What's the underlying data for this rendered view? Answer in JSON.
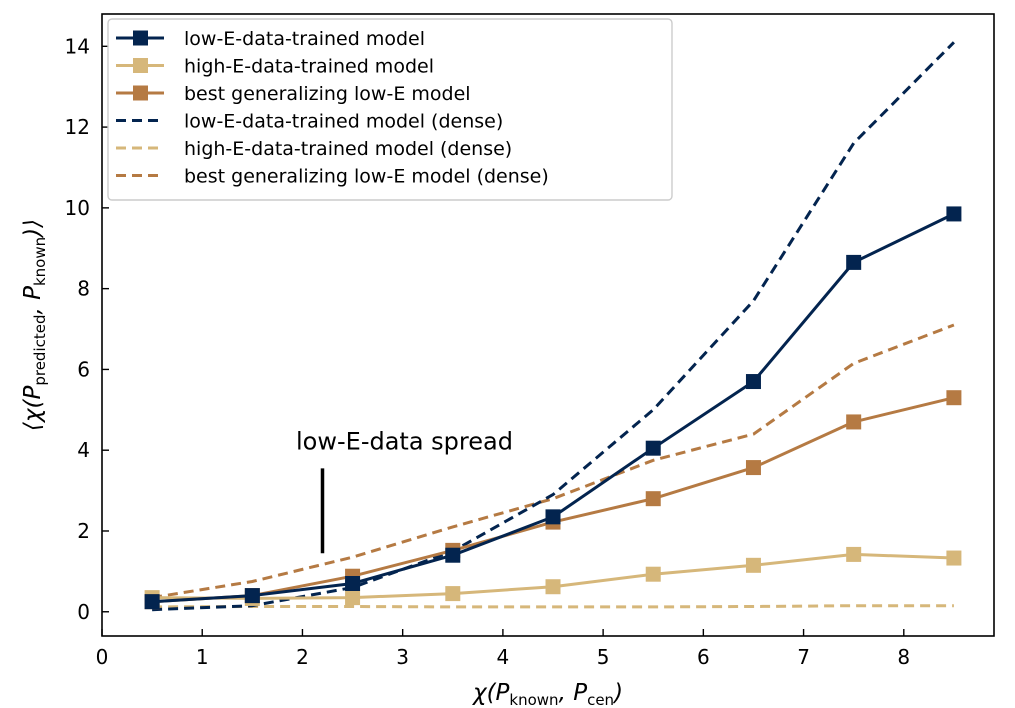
{
  "chart_data": {
    "type": "line",
    "xlabel": "χ(P_known, P_cen)",
    "ylabel": "⟨χ(P_predicted, P_known)⟩",
    "xlim": [
      0,
      8.9
    ],
    "ylim": [
      -0.6,
      14.8
    ],
    "xticks": [
      0,
      1,
      2,
      3,
      4,
      5,
      6,
      7,
      8
    ],
    "yticks": [
      0,
      2,
      4,
      6,
      8,
      10,
      12,
      14
    ],
    "legend_position": "top-left",
    "grid": false,
    "annotation": {
      "text": "low-E-data spread",
      "x": 2.2,
      "y_range": [
        1.45,
        3.55
      ]
    },
    "series": [
      {
        "name": "low-E-data-trained model",
        "color": "#03244f",
        "style": "solid",
        "marker": "square",
        "x": [
          0.5,
          1.5,
          2.5,
          3.5,
          4.5,
          5.5,
          6.5,
          7.5,
          8.5
        ],
        "y": [
          0.25,
          0.4,
          0.7,
          1.4,
          2.35,
          4.05,
          5.7,
          8.65,
          9.85
        ]
      },
      {
        "name": "high-E-data-trained model",
        "color": "#d6b77a",
        "style": "solid",
        "marker": "square",
        "x": [
          0.5,
          1.5,
          2.5,
          3.5,
          4.5,
          5.5,
          6.5,
          7.5,
          8.5
        ],
        "y": [
          0.35,
          0.33,
          0.35,
          0.45,
          0.62,
          0.93,
          1.15,
          1.42,
          1.33
        ]
      },
      {
        "name": "best generalizing low-E model",
        "color": "#b57a43",
        "style": "solid",
        "marker": "square",
        "x": [
          0.5,
          1.5,
          2.5,
          3.5,
          4.5,
          5.5,
          6.5,
          7.5,
          8.5
        ],
        "y": [
          0.25,
          0.4,
          0.88,
          1.52,
          2.22,
          2.8,
          3.57,
          4.7,
          5.3
        ]
      },
      {
        "name": "low-E-data-trained model (dense)",
        "color": "#03244f",
        "style": "dashed",
        "marker": "none",
        "x": [
          0.5,
          1.5,
          2.5,
          3.5,
          4.5,
          5.5,
          6.5,
          7.5,
          8.5
        ],
        "y": [
          0.05,
          0.15,
          0.6,
          1.5,
          2.9,
          5.0,
          7.7,
          11.6,
          14.1
        ]
      },
      {
        "name": "high-E-data-trained model (dense)",
        "color": "#d6b77a",
        "style": "dashed",
        "marker": "none",
        "x": [
          0.5,
          1.5,
          2.5,
          3.5,
          4.5,
          5.5,
          6.5,
          7.5,
          8.5
        ],
        "y": [
          0.12,
          0.13,
          0.13,
          0.12,
          0.12,
          0.12,
          0.13,
          0.15,
          0.15
        ]
      },
      {
        "name": "best generalizing low-E model (dense)",
        "color": "#b57a43",
        "style": "dashed",
        "marker": "none",
        "x": [
          0.5,
          1.5,
          2.5,
          3.5,
          4.5,
          5.5,
          6.5,
          7.5,
          8.5
        ],
        "y": [
          0.35,
          0.75,
          1.35,
          2.1,
          2.8,
          3.75,
          4.4,
          6.15,
          7.1
        ]
      }
    ]
  }
}
